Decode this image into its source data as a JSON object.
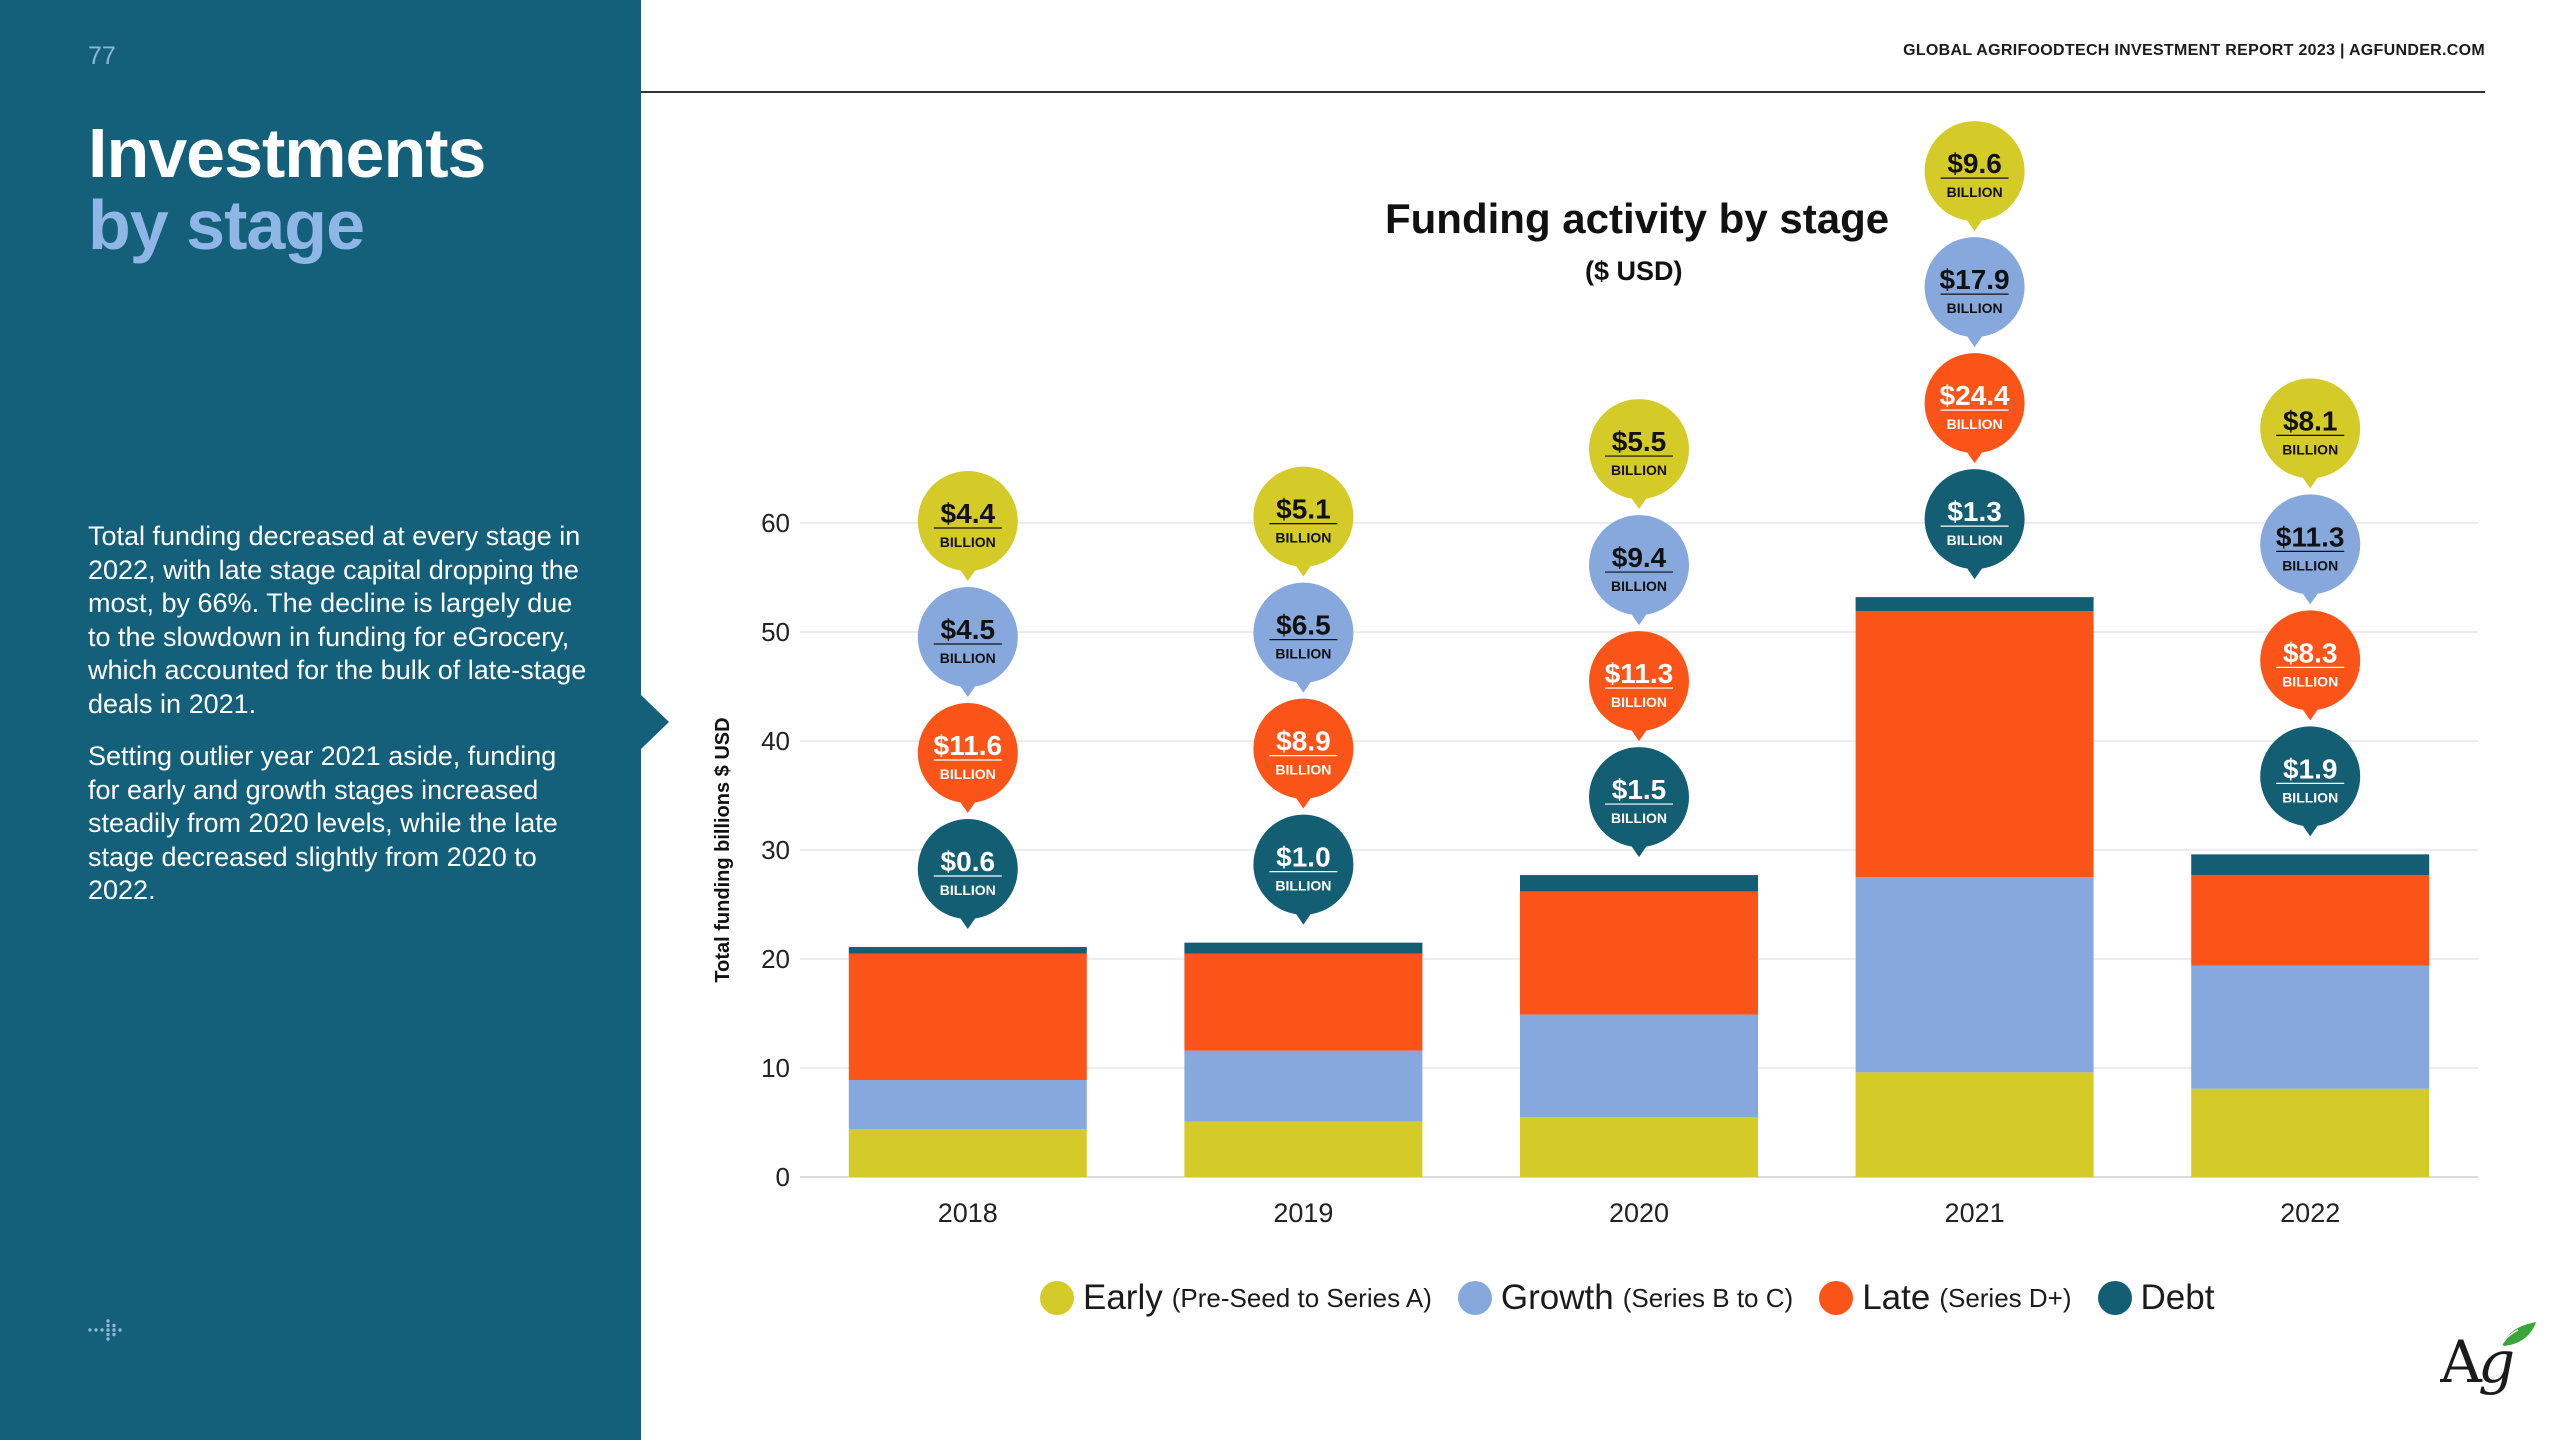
{
  "page": {
    "number": "77",
    "header": "GLOBAL AGRIFOODTECH INVESTMENT REPORT 2023 | AGFUNDER.COM"
  },
  "sidebar": {
    "title_line1": "Investments",
    "title_line2": "by stage",
    "paragraph1": "Total funding decreased at every stage in 2022, with late stage capital dropping the most, by 66%. The decline is largely due to the slowdown in funding for eGrocery, which accounted for the bulk of late-stage deals in 2021.",
    "paragraph2": "Setting outlier year 2021 aside, funding for early and growth stages increased steadily from 2020 levels, while the late stage decreased slightly from 2020 to 2022."
  },
  "colors": {
    "early": "#d4cb28",
    "growth": "#87a8dc",
    "late": "#fb5418",
    "debt": "#145e73",
    "sidebar": "#14607a"
  },
  "legend": [
    {
      "label": "Early",
      "detail": "(Pre-Seed to Series A)",
      "color": "#d4cb28"
    },
    {
      "label": "Growth",
      "detail": "(Series B to C)",
      "color": "#87a8dc"
    },
    {
      "label": "Late",
      "detail": "(Series D+)",
      "color": "#fb5418"
    },
    {
      "label": "Debt",
      "detail": "",
      "color": "#145e73"
    }
  ],
  "chart_data": {
    "type": "bar",
    "stacked": true,
    "title": "Funding activity by stage",
    "subtitle": "($ USD)",
    "ylabel": "Total funding billions $ USD",
    "ylim": [
      0,
      60
    ],
    "yticks": [
      0,
      10,
      20,
      30,
      40,
      50,
      60
    ],
    "grid": true,
    "legend_position": "bottom",
    "categories": [
      "2018",
      "2019",
      "2020",
      "2021",
      "2022"
    ],
    "series": [
      {
        "name": "Early",
        "values": [
          4.4,
          5.1,
          5.5,
          9.6,
          8.1
        ]
      },
      {
        "name": "Growth",
        "values": [
          4.5,
          6.5,
          9.4,
          17.9,
          11.3
        ]
      },
      {
        "name": "Late",
        "values": [
          11.6,
          8.9,
          11.3,
          24.4,
          8.3
        ]
      },
      {
        "name": "Debt",
        "values": [
          0.6,
          1.0,
          1.5,
          1.3,
          1.9
        ]
      }
    ],
    "bubble_labels": [
      [
        "$4.4",
        "$4.5",
        "$11.6",
        "$0.6"
      ],
      [
        "$5.1",
        "$6.5",
        "$8.9",
        "$1.0"
      ],
      [
        "$5.5",
        "$9.4",
        "$11.3",
        "$1.5"
      ],
      [
        "$9.6",
        "$17.9",
        "$24.4",
        "$1.3"
      ],
      [
        "$8.1",
        "$11.3",
        "$8.3",
        "$1.9"
      ]
    ],
    "bubble_unit": "BILLION"
  }
}
